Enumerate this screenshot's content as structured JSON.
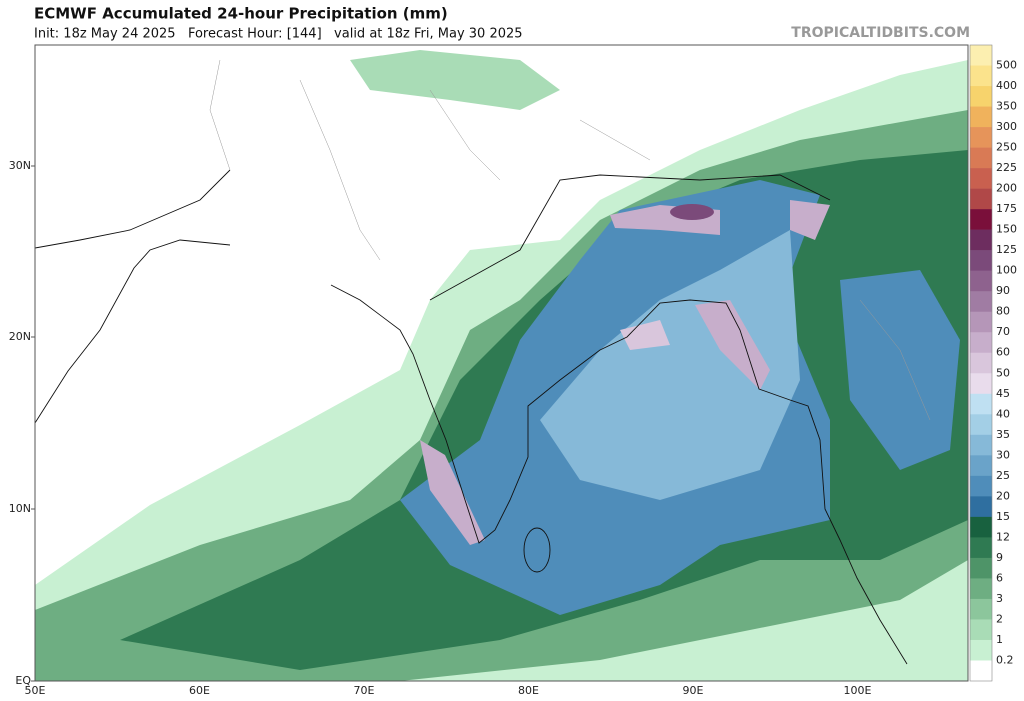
{
  "header": {
    "title": "ECMWF Accumulated 24-hour Precipitation (mm)",
    "subtitle": "Init: 18z May 24 2025   Forecast Hour: [144]   valid at 18z Fri, May 30 2025",
    "source": "TROPICALTIDBITS.COM"
  },
  "map": {
    "lat_labels": [
      "30N",
      "20N",
      "10N",
      "EQ"
    ],
    "lon_labels": [
      "50E",
      "60E",
      "70E",
      "80E",
      "90E",
      "100E"
    ]
  },
  "colorbar": {
    "labels": [
      500,
      400,
      350,
      300,
      250,
      225,
      200,
      175,
      150,
      125,
      100,
      90,
      80,
      70,
      60,
      50,
      45,
      40,
      35,
      30,
      25,
      20,
      15,
      12,
      9,
      6,
      3,
      2,
      1,
      0.2
    ],
    "colors": [
      "#fcefb0",
      "#fbe38c",
      "#f7d36c",
      "#f0b25c",
      "#e6945a",
      "#d97a55",
      "#c9604f",
      "#b04848",
      "#7a0f3a",
      "#6d2d5f",
      "#7b4a7a",
      "#8e628e",
      "#a07ca3",
      "#b596b8",
      "#c7aecb",
      "#d9c6dc",
      "#e9dcec",
      "#bfe0f2",
      "#a3cfe6",
      "#86b9d8",
      "#6aa3c9",
      "#4f8dba",
      "#2f6fa0",
      "#18613f",
      "#2f7a52",
      "#4e9468",
      "#6eae82",
      "#8cc69c",
      "#a9dcb6",
      "#c8f0d2",
      "#ffffff"
    ]
  }
}
